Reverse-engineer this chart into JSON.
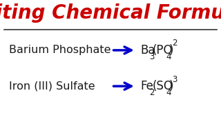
{
  "title": "Writing Chemical Formulas",
  "title_color": "#cc0000",
  "title_fontsize": 20,
  "bg_color": "#ffffff",
  "line_color": "#333333",
  "arrow_color": "#0000cc",
  "text_color": "#1a1a1a",
  "row1_name": "Barium Phosphate",
  "row2_name": "Iron (III) Sulfate"
}
